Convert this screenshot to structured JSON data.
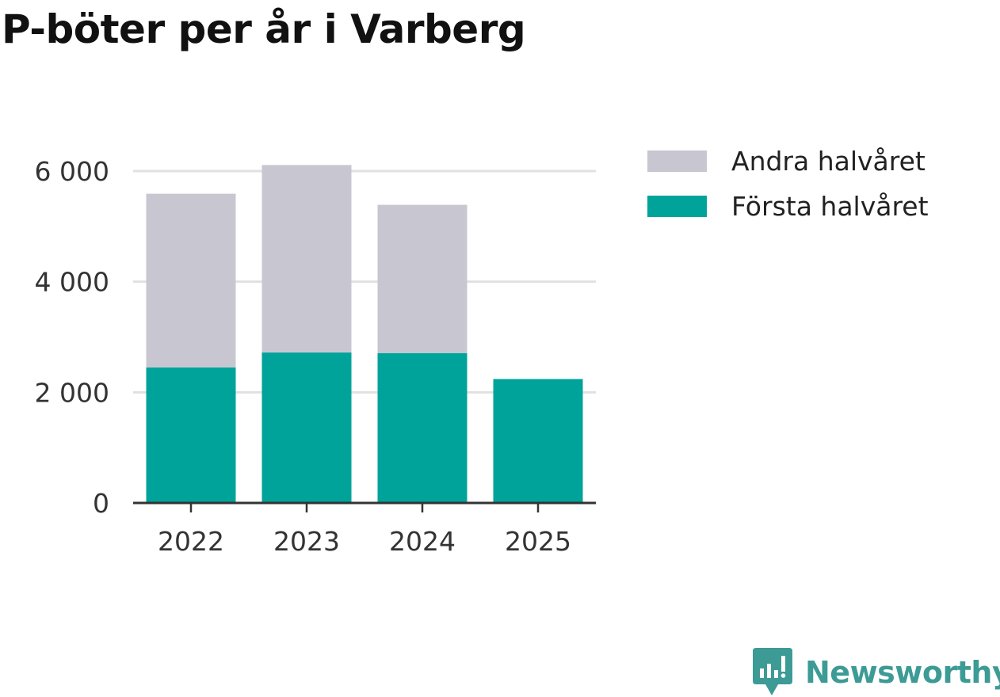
{
  "title": "P-böter per år i Varberg",
  "chart_data": {
    "type": "bar",
    "stacked": true,
    "categories": [
      "2022",
      "2023",
      "2024",
      "2025"
    ],
    "series": [
      {
        "name": "Första halvåret",
        "color": "#00a39a",
        "values": [
          2450,
          2720,
          2710,
          2240
        ]
      },
      {
        "name": "Andra halvåret",
        "color": "#c8c7d1",
        "values": [
          3140,
          3390,
          2680,
          0
        ]
      }
    ],
    "ylim": [
      0,
      6000
    ],
    "yticks": [
      0,
      2000,
      4000,
      6000
    ],
    "ytick_labels": [
      "0",
      "2 000",
      "4 000",
      "6 000"
    ],
    "grid": true,
    "legend": [
      {
        "label": "Andra halvåret",
        "color": "#c8c7d1"
      },
      {
        "label": "Första halvåret",
        "color": "#00a39a"
      }
    ],
    "xlabel": "",
    "ylabel": ""
  },
  "brand": {
    "name": "Newsworthy",
    "color": "#3d9b96",
    "icon": "newsworthy-logo-icon"
  }
}
